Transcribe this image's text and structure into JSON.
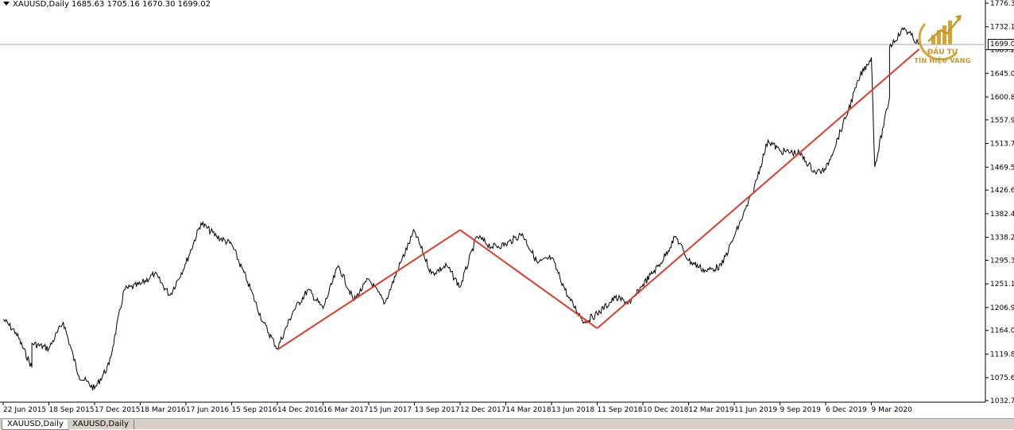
{
  "window": {
    "symbol_info": "XAUUSD,Daily  1685.63 1705.16 1670.30 1699.02",
    "current_price": "1699.02",
    "logo_text": "TÍN HIỆU VÀNG",
    "logo_small_text": "ĐẦU TƯ",
    "tabs": [
      {
        "label": "XAUUSD,Daily",
        "active": true
      },
      {
        "label": "XAUUSD,Daily",
        "active": false
      }
    ]
  },
  "chart_data": {
    "type": "line",
    "symbol": "XAUUSD",
    "timeframe": "Daily",
    "ohlc_last": {
      "open": 1685.63,
      "high": 1705.16,
      "low": 1670.3,
      "close": 1699.02
    },
    "y_ticks": [
      "1776.30",
      "1732.10",
      "1689.20",
      "1645.00",
      "1600.80",
      "1557.90",
      "1513.70",
      "1469.50",
      "1426.60",
      "1382.40",
      "1338.20",
      "1295.30",
      "1251.10",
      "1206.90",
      "1164.00",
      "1119.80",
      "1075.60",
      "1032.70"
    ],
    "ylim": [
      1032.7,
      1776.3
    ],
    "x_ticks": [
      "22 Jun 2015",
      "18 Sep 2015",
      "17 Dec 2015",
      "18 Mar 2016",
      "17 Jun 2016",
      "15 Sep 2016",
      "14 Dec 2016",
      "16 Mar 2017",
      "15 Jun 2017",
      "13 Sep 2017",
      "12 Dec 2017",
      "14 Mar 2018",
      "13 Jun 2018",
      "11 Sep 2018",
      "10 Dec 2018",
      "12 Mar 2019",
      "11 Jun 2019",
      "9 Sep 2019",
      "6 Dec 2019",
      "9 Mar 2020"
    ],
    "series": [
      {
        "color": "#000000",
        "points": [
          [
            "22 Jun 2015",
            1185
          ],
          [
            "Jul 2015",
            1160
          ],
          [
            "Aug 2015",
            1095
          ],
          [
            "Aug 2015",
            1140
          ],
          [
            "18 Sep 2015",
            1130
          ],
          [
            "Oct 2015",
            1180
          ],
          [
            "Nov 2015",
            1080
          ],
          [
            "17 Dec 2015",
            1055
          ],
          [
            "Jan 2016",
            1100
          ],
          [
            "Feb 2016",
            1240
          ],
          [
            "18 Mar 2016",
            1250
          ],
          [
            "Apr 2016",
            1270
          ],
          [
            "May 2016",
            1230
          ],
          [
            "17 Jun 2016",
            1290
          ],
          [
            "Jul 2016",
            1365
          ],
          [
            "Aug 2016",
            1340
          ],
          [
            "15 Sep 2016",
            1325
          ],
          [
            "Oct 2016",
            1255
          ],
          [
            "Nov 2016",
            1180
          ],
          [
            "14 Dec 2016",
            1130
          ],
          [
            "Jan 2017",
            1200
          ],
          [
            "Feb 2017",
            1240
          ],
          [
            "16 Mar 2017",
            1205
          ],
          [
            "Apr 2017",
            1285
          ],
          [
            "May 2017",
            1220
          ],
          [
            "15 Jun 2017",
            1260
          ],
          [
            "Jul 2017",
            1215
          ],
          [
            "Aug 2017",
            1290
          ],
          [
            "13 Sep 2017",
            1350
          ],
          [
            "Oct 2017",
            1270
          ],
          [
            "Nov 2017",
            1285
          ],
          [
            "12 Dec 2017",
            1245
          ],
          [
            "Jan 2018",
            1340
          ],
          [
            "Feb 2018",
            1320
          ],
          [
            "14 Mar 2018",
            1325
          ],
          [
            "Apr 2018",
            1345
          ],
          [
            "May 2018",
            1290
          ],
          [
            "13 Jun 2018",
            1300
          ],
          [
            "Jul 2018",
            1225
          ],
          [
            "Aug 2018",
            1180
          ],
          [
            "11 Sep 2018",
            1195
          ],
          [
            "Oct 2018",
            1225
          ],
          [
            "Nov 2018",
            1215
          ],
          [
            "10 Dec 2018",
            1250
          ],
          [
            "Jan 2019",
            1290
          ],
          [
            "Feb 2019",
            1340
          ],
          [
            "12 Mar 2019",
            1295
          ],
          [
            "Apr 2019",
            1275
          ],
          [
            "May 2019",
            1285
          ],
          [
            "11 Jun 2019",
            1340
          ],
          [
            "Jul 2019",
            1420
          ],
          [
            "Aug 2019",
            1520
          ],
          [
            "9 Sep 2019",
            1500
          ],
          [
            "Oct 2019",
            1495
          ],
          [
            "Nov 2019",
            1460
          ],
          [
            "6 Dec 2019",
            1465
          ],
          [
            "Jan 2020",
            1560
          ],
          [
            "Feb 2020",
            1640
          ],
          [
            "9 Mar 2020",
            1675
          ],
          [
            "Mar 2020",
            1470
          ],
          [
            "Apr 2020",
            1600
          ],
          [
            "Apr 2020",
            1695
          ],
          [
            "May 2020",
            1730
          ],
          [
            "Jun 2020",
            1699
          ]
        ]
      }
    ],
    "trendlines": [
      {
        "color": "#e03a2e",
        "from": [
          "14 Dec 2016",
          1128
        ],
        "to": [
          "12 Dec 2017",
          1352
        ]
      },
      {
        "color": "#e03a2e",
        "from": [
          "12 Dec 2017",
          1352
        ],
        "to": [
          "11 Sep 2018",
          1168
        ]
      },
      {
        "color": "#e03a2e",
        "from": [
          "11 Sep 2018",
          1168
        ],
        "to": [
          "Jun 2020",
          1690
        ]
      }
    ],
    "current_price_line": 1699.02,
    "grid": false,
    "colors": {
      "price_line": "#000000",
      "trendline": "#e03a2e",
      "current_price_line": "#a0a0a0",
      "logo": "#d4a437"
    }
  }
}
